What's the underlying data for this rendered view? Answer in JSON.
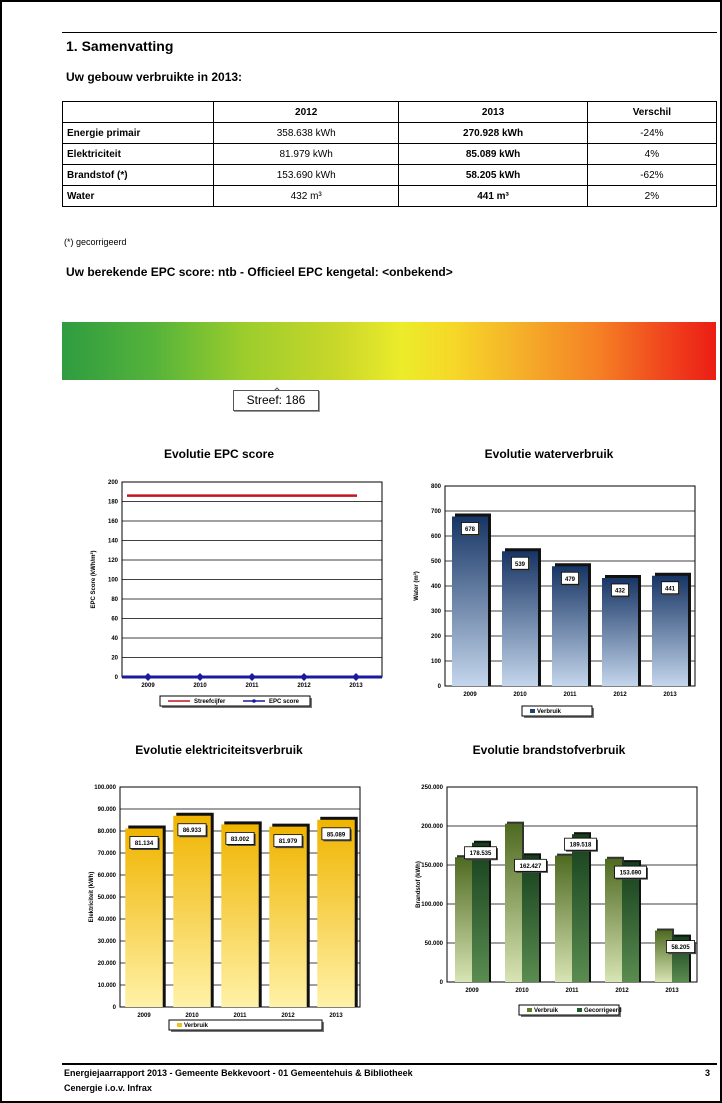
{
  "section_title": "1. Samenvatting",
  "subtitle": "Uw gebouw verbruikte in 2013:",
  "table": {
    "headers": [
      "",
      "2012",
      "2013",
      "Verschil"
    ],
    "rows": [
      {
        "label": "Energie primair",
        "v2012": "358.638 kWh",
        "v2013": "270.928 kWh",
        "diff": "-24%"
      },
      {
        "label": "Elektriciteit",
        "v2012": "81.979 kWh",
        "v2013": "85.089 kWh",
        "diff": "4%"
      },
      {
        "label": "Brandstof (*)",
        "v2012": "153.690 kWh",
        "v2013": "58.205 kWh",
        "diff": "-62%"
      },
      {
        "label": "Water",
        "v2012": "432 m³",
        "v2013": "441 m³",
        "diff": "2%"
      }
    ]
  },
  "footnote": "(*) gecorrigeerd",
  "epc_line": "Uw berekende EPC score: ntb - Officieel EPC kengetal: <onbekend>",
  "streef_label": "Streef: 186",
  "colors": {
    "gradient_start": "#2e9c40",
    "gradient_mid": "#ecec2a",
    "gradient_end": "#ea1e14",
    "water_bar": "#1f3f6e",
    "elec_bar": "#f2c21a",
    "fuel_bar": "#5e7a2a",
    "fuel_corr": "#1f5a2a",
    "epc_target": "#c0141e",
    "epc_score": "#1a1a9c"
  },
  "chart_data": [
    {
      "type": "line",
      "title": "Evolutie EPC score",
      "ylabel": "EPC Score (kWh/m²)",
      "ylim": [
        0,
        200
      ],
      "yticks": [
        "0",
        "20",
        "40",
        "60",
        "80",
        "100",
        "120",
        "140",
        "160",
        "180",
        "200"
      ],
      "categories": [
        "2009",
        "2010",
        "2011",
        "2012",
        "2013"
      ],
      "series": [
        {
          "name": "Streefcijfer",
          "values": [
            186,
            186,
            186,
            186,
            186
          ]
        },
        {
          "name": "EPC score",
          "values": [
            0,
            0,
            0,
            0,
            0
          ]
        }
      ],
      "legend": "bottom"
    },
    {
      "type": "bar",
      "title": "Evolutie waterverbruik",
      "ylabel": "Water (m³)",
      "ylim": [
        0,
        800
      ],
      "yticks": [
        "0",
        "100",
        "200",
        "300",
        "400",
        "500",
        "600",
        "700",
        "800"
      ],
      "categories": [
        "2009",
        "2010",
        "2011",
        "2012",
        "2013"
      ],
      "series": [
        {
          "name": "Verbruik",
          "values": [
            678,
            539,
            479,
            432,
            441
          ]
        }
      ],
      "value_labels": [
        "678",
        "539",
        "479",
        "432",
        "441"
      ],
      "legend": "bottom"
    },
    {
      "type": "bar",
      "title": "Evolutie elektriciteitsverbruik",
      "ylabel": "Elektriciteit (kWh)",
      "ylim": [
        0,
        100000
      ],
      "yticks": [
        "0",
        "10.000",
        "20.000",
        "30.000",
        "40.000",
        "50.000",
        "60.000",
        "70.000",
        "80.000",
        "90.000",
        "100.000"
      ],
      "categories": [
        "2009",
        "2010",
        "2011",
        "2012",
        "2013"
      ],
      "series": [
        {
          "name": "Verbruik",
          "values": [
            81134,
            86933,
            83002,
            81979,
            85089
          ]
        }
      ],
      "value_labels": [
        "81.134",
        "86.933",
        "83.002",
        "81.979",
        "85.089"
      ],
      "legend": "bottom"
    },
    {
      "type": "bar",
      "title": "Evolutie brandstofverbruik",
      "ylabel": "Brandstof (kWh)",
      "ylim": [
        0,
        250000
      ],
      "yticks": [
        "0",
        "50.000",
        "100.000",
        "150.000",
        "200.000",
        "250.000"
      ],
      "categories": [
        "2009",
        "2010",
        "2011",
        "2012",
        "2013"
      ],
      "series": [
        {
          "name": "Verbruik",
          "values": [
            160000,
            203000,
            162000,
            158000,
            66000
          ]
        },
        {
          "name": "Gecorrigeerd",
          "values": [
            178535,
            162427,
            189518,
            153690,
            58205
          ]
        }
      ],
      "value_labels": [
        "178.535",
        "162.427",
        "189.518",
        "153.690",
        "58.205"
      ],
      "legend": "bottom"
    }
  ],
  "footer": {
    "line1": "Energiejaarrapport 2013 - Gemeente Bekkevoort - 01 Gemeentehuis & Bibliotheek",
    "line2": "Cenergie i.o.v. Infrax",
    "page": "3"
  }
}
